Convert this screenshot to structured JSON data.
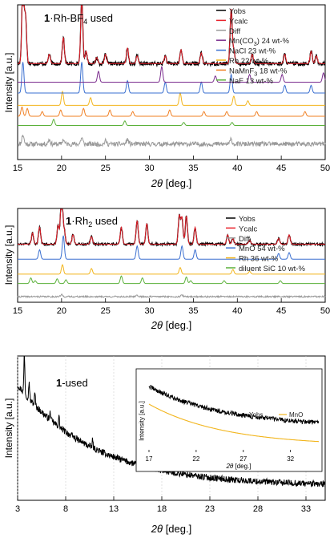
{
  "chart_data": [
    {
      "type": "line",
      "title_bold": "1",
      "title_main": "·Rh-BF",
      "title_sub": "4",
      "title_end": " used",
      "xlabel_theta": "2θ",
      "xlabel_unit": " [deg.]",
      "ylabel": "Intensity [a.u.]",
      "xlim": [
        15,
        50
      ],
      "xticks": [
        "15",
        "20",
        "25",
        "30",
        "35",
        "40",
        "45",
        "50"
      ],
      "legend_position": "top-right",
      "legend": [
        {
          "label": "Yobs",
          "color": "#000000"
        },
        {
          "label": "Ycalc",
          "color": "#e8202a"
        },
        {
          "label": "Diff",
          "color": "#999999"
        },
        {
          "label": "Mn(CO3) 24 wt-%",
          "color": "#7b2d8e"
        },
        {
          "label": "NaCl 23 wt-%",
          "color": "#3a6fd0"
        },
        {
          "label": "Rh 22 wt-%",
          "color": "#f2b51c"
        },
        {
          "label": "NaMnF3 18 wt-%",
          "color": "#f07f22"
        },
        {
          "label": "NaF 13 wt-%",
          "color": "#5bb13a"
        }
      ],
      "series": [
        {
          "name": "Yobs",
          "offset": 0.62,
          "noise": 0.012,
          "peaks": [
            [
              15.6,
              0.55
            ],
            [
              15.9,
              0.3
            ],
            [
              18.6,
              0.06
            ],
            [
              20.2,
              0.17
            ],
            [
              22.3,
              0.42
            ],
            [
              22.8,
              0.08
            ],
            [
              24.0,
              0.04
            ],
            [
              25.0,
              0.06
            ],
            [
              27.5,
              0.1
            ],
            [
              28.6,
              0.05
            ],
            [
              31.8,
              0.05
            ],
            [
              33.6,
              0.09
            ],
            [
              35.9,
              0.07
            ],
            [
              39.3,
              0.35
            ],
            [
              39.6,
              0.08
            ],
            [
              41.7,
              0.06
            ],
            [
              45.4,
              0.06
            ],
            [
              48.4,
              0.08
            ],
            [
              49.0,
              0.05
            ]
          ]
        },
        {
          "name": "Ycalc",
          "offset": 0.62,
          "noise": 0.0,
          "peaks": [
            [
              15.6,
              0.55
            ],
            [
              15.9,
              0.3
            ],
            [
              18.6,
              0.06
            ],
            [
              20.2,
              0.17
            ],
            [
              22.3,
              0.42
            ],
            [
              22.8,
              0.08
            ],
            [
              24.0,
              0.04
            ],
            [
              25.0,
              0.06
            ],
            [
              27.5,
              0.1
            ],
            [
              28.6,
              0.05
            ],
            [
              31.8,
              0.05
            ],
            [
              33.6,
              0.09
            ],
            [
              35.9,
              0.07
            ],
            [
              39.3,
              0.35
            ],
            [
              39.6,
              0.08
            ],
            [
              41.7,
              0.06
            ],
            [
              45.4,
              0.06
            ],
            [
              48.4,
              0.08
            ],
            [
              49.0,
              0.05
            ]
          ]
        },
        {
          "name": "Mn(CO3)",
          "offset": 0.5,
          "noise": 0.0,
          "peaks": [
            [
              24.2,
              0.07
            ],
            [
              31.4,
              0.1
            ],
            [
              37.5,
              0.04
            ],
            [
              41.4,
              0.05
            ],
            [
              45.1,
              0.05
            ],
            [
              49.8,
              0.06
            ]
          ]
        },
        {
          "name": "NaCl",
          "offset": 0.43,
          "noise": 0.0,
          "peaks": [
            [
              15.6,
              0.2
            ],
            [
              22.3,
              0.2
            ],
            [
              27.5,
              0.08
            ],
            [
              31.8,
              0.07
            ],
            [
              35.9,
              0.07
            ],
            [
              39.3,
              0.12
            ],
            [
              45.4,
              0.05
            ],
            [
              48.4,
              0.05
            ]
          ]
        },
        {
          "name": "Rh",
          "offset": 0.35,
          "noise": 0.0,
          "peaks": [
            [
              20.1,
              0.09
            ],
            [
              23.3,
              0.05
            ],
            [
              33.5,
              0.08
            ],
            [
              39.6,
              0.06
            ],
            [
              41.2,
              0.03
            ]
          ]
        },
        {
          "name": "NaMnF3",
          "offset": 0.28,
          "noise": 0.0,
          "peaks": [
            [
              15.5,
              0.06
            ],
            [
              16.1,
              0.05
            ],
            [
              17.8,
              0.03
            ],
            [
              19.9,
              0.04
            ],
            [
              22.5,
              0.05
            ],
            [
              25.5,
              0.04
            ],
            [
              28.1,
              0.03
            ],
            [
              32.3,
              0.04
            ],
            [
              36.2,
              0.03
            ],
            [
              38.8,
              0.03
            ],
            [
              42.2,
              0.03
            ],
            [
              47.7,
              0.03
            ]
          ]
        },
        {
          "name": "NaF",
          "offset": 0.22,
          "noise": 0.0,
          "peaks": [
            [
              19.1,
              0.04
            ],
            [
              27.2,
              0.03
            ],
            [
              33.9,
              0.02
            ],
            [
              39.4,
              0.02
            ]
          ]
        },
        {
          "name": "Diff",
          "offset": 0.1,
          "noise": 0.015,
          "peaks": [
            [
              15.6,
              0.06
            ],
            [
              18.6,
              0.03
            ],
            [
              20.2,
              0.03
            ],
            [
              22.3,
              0.04
            ],
            [
              25.0,
              0.02
            ],
            [
              27.5,
              0.03
            ],
            [
              39.3,
              0.03
            ]
          ]
        }
      ]
    },
    {
      "type": "line",
      "title_bold": "1",
      "title_main": "·Rh",
      "title_sub": "2",
      "title_end": " used",
      "xlabel_theta": "2θ",
      "xlabel_unit": " [deg.]",
      "ylabel": "Intensity [a.u.]",
      "xlim": [
        15,
        50
      ],
      "xticks": [
        "15",
        "20",
        "25",
        "30",
        "35",
        "40",
        "45",
        "50"
      ],
      "legend_position": "top-right",
      "legend": [
        {
          "label": "Yobs",
          "color": "#000000"
        },
        {
          "label": "Ycalc",
          "color": "#e8202a"
        },
        {
          "label": "Diff",
          "color": "#999999"
        },
        {
          "label": "MnO 54 wt-%",
          "color": "#3a6fd0"
        },
        {
          "label": "Rh 36 wt-%",
          "color": "#f2b51c"
        },
        {
          "label": "diluent SiC 10 wt-%",
          "color": "#5bb13a"
        }
      ],
      "series": [
        {
          "name": "Yobs",
          "offset": 0.62,
          "noise": 0.012,
          "peaks": [
            [
              16.7,
              0.12
            ],
            [
              17.5,
              0.18
            ],
            [
              19.6,
              0.2
            ],
            [
              20.0,
              0.6
            ],
            [
              20.3,
              0.15
            ],
            [
              21.3,
              0.1
            ],
            [
              23.4,
              0.08
            ],
            [
              26.8,
              0.18
            ],
            [
              28.6,
              0.25
            ],
            [
              29.7,
              0.22
            ],
            [
              33.4,
              0.3
            ],
            [
              33.7,
              0.28
            ],
            [
              34.2,
              0.3
            ],
            [
              35.2,
              0.18
            ],
            [
              38.9,
              0.1
            ],
            [
              39.5,
              0.06
            ],
            [
              41.4,
              0.04
            ],
            [
              44.7,
              0.06
            ],
            [
              45.9,
              0.1
            ]
          ]
        },
        {
          "name": "Ycalc",
          "offset": 0.62,
          "noise": 0.0,
          "peaks": [
            [
              16.7,
              0.12
            ],
            [
              17.5,
              0.18
            ],
            [
              19.6,
              0.2
            ],
            [
              20.0,
              0.6
            ],
            [
              20.3,
              0.15
            ],
            [
              21.3,
              0.1
            ],
            [
              23.4,
              0.08
            ],
            [
              26.8,
              0.18
            ],
            [
              28.6,
              0.25
            ],
            [
              29.7,
              0.22
            ],
            [
              33.4,
              0.3
            ],
            [
              33.7,
              0.28
            ],
            [
              34.2,
              0.3
            ],
            [
              35.2,
              0.18
            ],
            [
              38.9,
              0.1
            ],
            [
              39.5,
              0.06
            ],
            [
              41.4,
              0.04
            ],
            [
              44.7,
              0.06
            ],
            [
              45.9,
              0.1
            ]
          ]
        },
        {
          "name": "MnO",
          "offset": 0.46,
          "noise": 0.0,
          "peaks": [
            [
              17.5,
              0.1
            ],
            [
              20.2,
              0.25
            ],
            [
              28.6,
              0.14
            ],
            [
              33.7,
              0.14
            ],
            [
              35.2,
              0.1
            ],
            [
              44.7,
              0.06
            ],
            [
              45.9,
              0.07
            ]
          ]
        },
        {
          "name": "Rh",
          "offset": 0.3,
          "noise": 0.0,
          "peaks": [
            [
              20.1,
              0.1
            ],
            [
              23.4,
              0.06
            ],
            [
              33.5,
              0.07
            ],
            [
              39.5,
              0.05
            ],
            [
              41.4,
              0.03
            ]
          ]
        },
        {
          "name": "SiC",
          "offset": 0.2,
          "noise": 0.0,
          "peaks": [
            [
              16.5,
              0.06
            ],
            [
              17.0,
              0.03
            ],
            [
              19.5,
              0.05
            ],
            [
              20.5,
              0.04
            ],
            [
              26.8,
              0.08
            ],
            [
              29.2,
              0.06
            ],
            [
              34.2,
              0.07
            ],
            [
              34.7,
              0.03
            ],
            [
              38.5,
              0.03
            ],
            [
              44.9,
              0.03
            ]
          ]
        },
        {
          "name": "Diff",
          "offset": 0.06,
          "noise": 0.008,
          "peaks": [
            [
              20.0,
              0.02
            ],
            [
              28.6,
              0.015
            ],
            [
              33.7,
              0.015
            ]
          ]
        }
      ]
    },
    {
      "type": "line",
      "title_bold": "1",
      "title_end": "-used",
      "xlabel_theta": "2θ",
      "xlabel_unit": " [deg.]",
      "ylabel": "Intensity [a.u.]",
      "xlim": [
        3,
        35
      ],
      "xticks": [
        "3",
        "8",
        "13",
        "18",
        "23",
        "28",
        "33"
      ],
      "xtick_values": [
        3,
        8,
        13,
        18,
        23,
        28,
        33
      ],
      "grid": true,
      "series": [
        {
          "name": "Yobs",
          "start": 0.8,
          "end": 0.1,
          "decay": 4.0,
          "noise": 0.022,
          "peaks": [
            [
              3.7,
              0.3
            ],
            [
              4.2,
              0.12
            ],
            [
              4.8,
              0.08
            ],
            [
              6.4,
              0.05
            ],
            [
              7.3,
              0.07
            ],
            [
              10.8,
              0.05
            ]
          ]
        }
      ],
      "inset": {
        "ylabel": "Intensity [a.u.]",
        "xlabel_theta": "2θ",
        "xlabel_unit": " [deg.]",
        "xlim": [
          17,
          35
        ],
        "xticks": [
          "17",
          "22",
          "27",
          "32"
        ],
        "xtick_values": [
          17,
          22,
          27,
          32
        ],
        "legend": [
          {
            "label": "Yobs",
            "color": "#000000"
          },
          {
            "label": "MnO",
            "color": "#f2b51c"
          }
        ],
        "series": [
          {
            "name": "Yobs",
            "start": 0.82,
            "end": 0.32,
            "noise": 0.03
          },
          {
            "name": "MnO",
            "start": 0.6,
            "end": 0.08,
            "noise": 0.0
          }
        ]
      }
    }
  ]
}
